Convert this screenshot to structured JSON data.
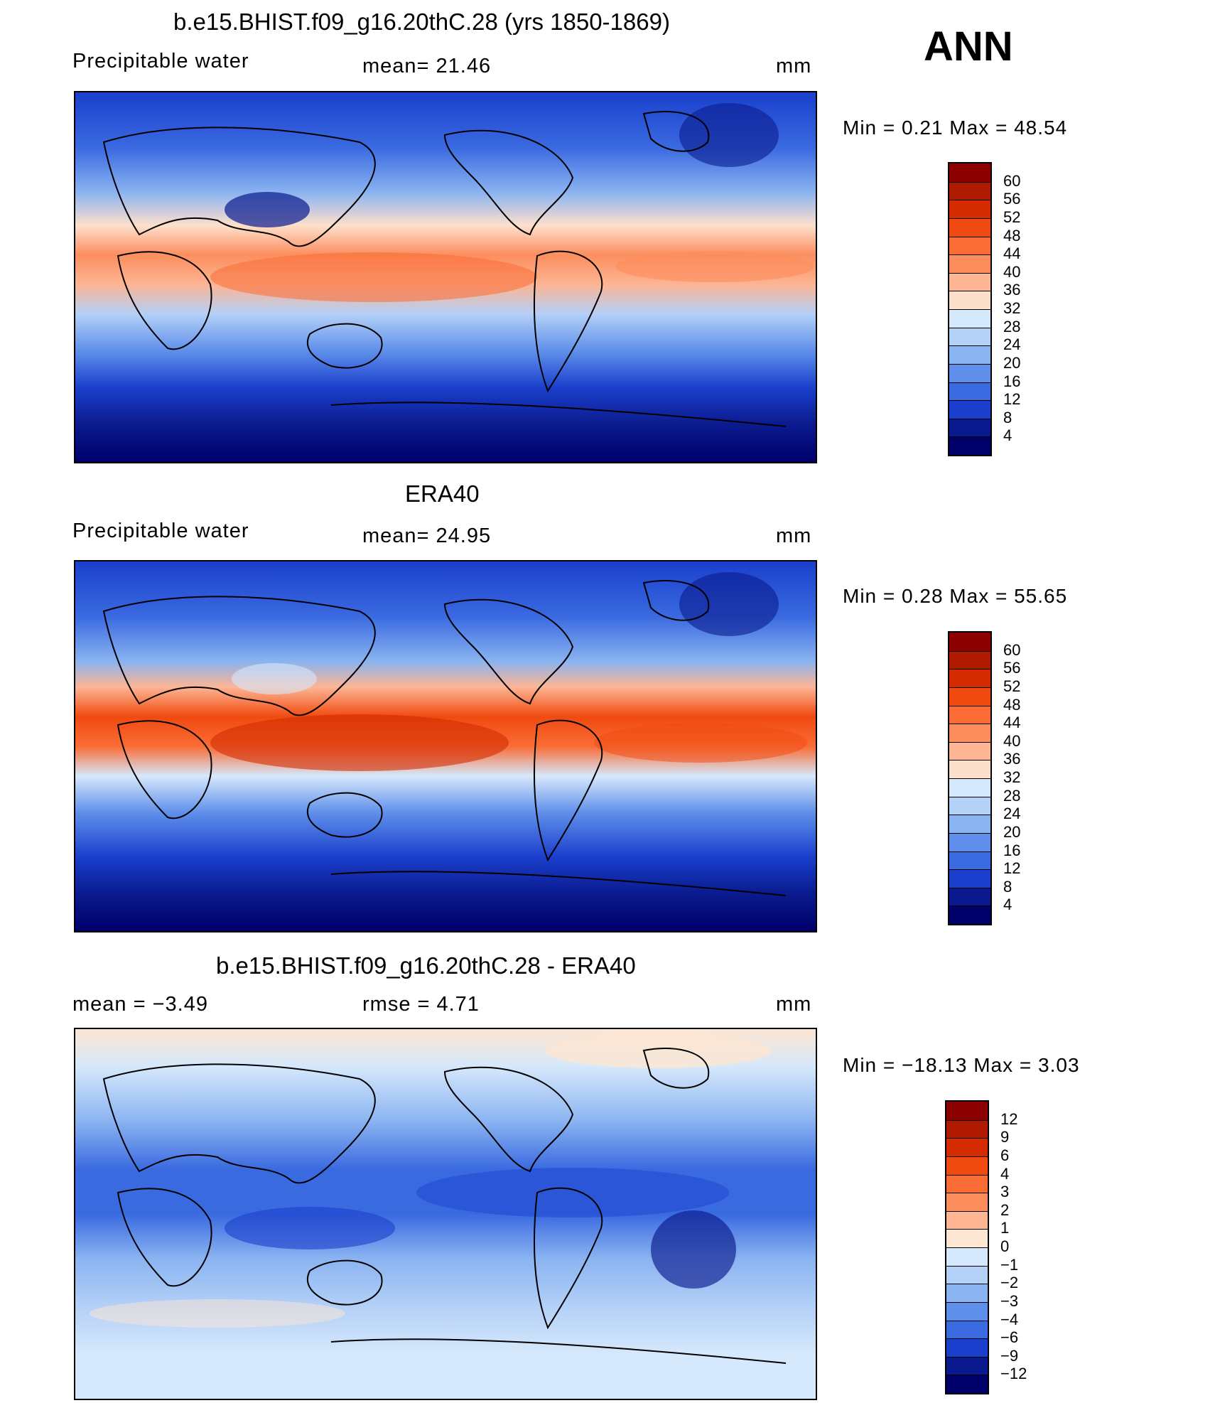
{
  "season": "ANN",
  "panels": [
    {
      "title": "b.e15.BHIST.f09_g16.20thC.28 (yrs 1850-1869)",
      "left_label": "Precipitable  water",
      "center_label": "mean=   21.46",
      "units": "mm",
      "minmax": "Min  =      0.21  Max  =     48.54",
      "colorbar_labels": [
        "60",
        "56",
        "52",
        "48",
        "44",
        "40",
        "36",
        "32",
        "28",
        "24",
        "20",
        "16",
        "12",
        "8",
        "4"
      ],
      "colorbar_colors": [
        "#8b0000",
        "#b01a00",
        "#d42b00",
        "#f04a10",
        "#fa6c35",
        "#fc8e5e",
        "#fdb594",
        "#fde0cc",
        "#d6e8fb",
        "#b3d0f7",
        "#8ab3f1",
        "#5f8fea",
        "#3a6ae0",
        "#1a3fcc",
        "#0a1a8e",
        "#00006a"
      ]
    },
    {
      "title": "ERA40",
      "left_label": "Precipitable  water",
      "center_label": "mean=   24.95",
      "units": "mm",
      "minmax": "Min  =      0.28  Max  =     55.65",
      "colorbar_labels": [
        "60",
        "56",
        "52",
        "48",
        "44",
        "40",
        "36",
        "32",
        "28",
        "24",
        "20",
        "16",
        "12",
        "8",
        "4"
      ],
      "colorbar_colors": [
        "#8b0000",
        "#b01a00",
        "#d42b00",
        "#f04a10",
        "#fa6c35",
        "#fc8e5e",
        "#fdb594",
        "#fde0cc",
        "#d6e8fb",
        "#b3d0f7",
        "#8ab3f1",
        "#5f8fea",
        "#3a6ae0",
        "#1a3fcc",
        "#0a1a8e",
        "#00006a"
      ]
    },
    {
      "title": "b.e15.BHIST.f09_g16.20thC.28 - ERA40",
      "left_label": "mean  =     −3.49",
      "center_label": "rmse  =      4.71",
      "units": "mm",
      "minmax": "Min  =  −18.13  Max  =       3.03",
      "colorbar_labels": [
        "12",
        "9",
        "6",
        "4",
        "3",
        "2",
        "1",
        "0",
        "−1",
        "−2",
        "−3",
        "−4",
        "−6",
        "−9",
        "−12"
      ],
      "colorbar_colors": [
        "#8b0000",
        "#b01a00",
        "#d42b00",
        "#f04a10",
        "#fa6c35",
        "#fc8e5e",
        "#fdb594",
        "#fde6d2",
        "#d6e8fb",
        "#b3d0f7",
        "#8ab3f1",
        "#5f8fea",
        "#3a6ae0",
        "#1a3fcc",
        "#0a1a8e",
        "#00006a"
      ]
    }
  ]
}
